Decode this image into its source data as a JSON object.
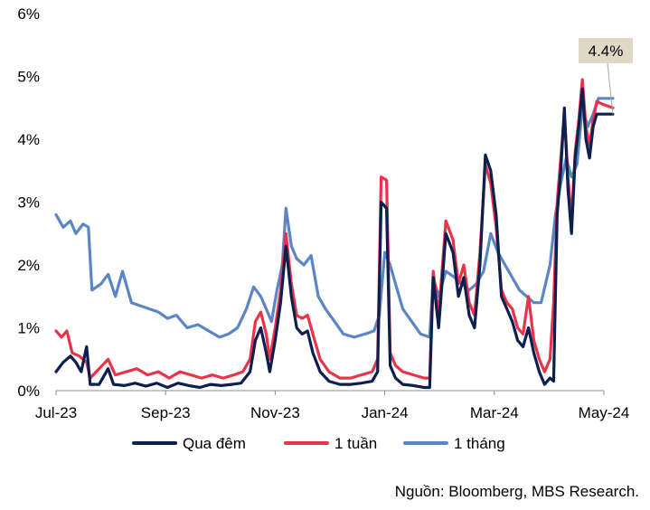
{
  "chart_data": {
    "type": "line",
    "x_ticks": [
      "Jul-23",
      "Sep-23",
      "Nov-23",
      "Jan-24",
      "Mar-24",
      "May-24"
    ],
    "x_range": [
      "2023-07-01",
      "2024-05-01"
    ],
    "y_ticks": [
      "0%",
      "1%",
      "2%",
      "3%",
      "4%",
      "5%",
      "6%"
    ],
    "ylim": [
      0,
      6
    ],
    "grid": false,
    "legend_position": "bottom",
    "callout": {
      "text": "4.4%",
      "background": "#ddd9c4",
      "series": "Qua đêm"
    },
    "series": [
      {
        "name": "Qua đêm",
        "color": "#0d1f4f",
        "points": [
          [
            "2023-07-01",
            0.3
          ],
          [
            "2023-07-05",
            0.45
          ],
          [
            "2023-07-09",
            0.55
          ],
          [
            "2023-07-12",
            0.45
          ],
          [
            "2023-07-15",
            0.3
          ],
          [
            "2023-07-18",
            0.7
          ],
          [
            "2023-07-20",
            0.1
          ],
          [
            "2023-07-25",
            0.1
          ],
          [
            "2023-07-30",
            0.35
          ],
          [
            "2023-08-02",
            0.1
          ],
          [
            "2023-08-08",
            0.08
          ],
          [
            "2023-08-14",
            0.12
          ],
          [
            "2023-08-20",
            0.07
          ],
          [
            "2023-08-26",
            0.12
          ],
          [
            "2023-09-01",
            0.05
          ],
          [
            "2023-09-07",
            0.12
          ],
          [
            "2023-09-13",
            0.08
          ],
          [
            "2023-09-19",
            0.05
          ],
          [
            "2023-09-25",
            0.1
          ],
          [
            "2023-10-01",
            0.08
          ],
          [
            "2023-10-07",
            0.1
          ],
          [
            "2023-10-12",
            0.12
          ],
          [
            "2023-10-17",
            0.3
          ],
          [
            "2023-10-20",
            0.8
          ],
          [
            "2023-10-23",
            1.0
          ],
          [
            "2023-10-26",
            0.6
          ],
          [
            "2023-10-28",
            0.3
          ],
          [
            "2023-10-31",
            0.8
          ],
          [
            "2023-11-03",
            1.4
          ],
          [
            "2023-11-06",
            2.3
          ],
          [
            "2023-11-09",
            1.5
          ],
          [
            "2023-11-12",
            1.0
          ],
          [
            "2023-11-15",
            0.9
          ],
          [
            "2023-11-18",
            0.95
          ],
          [
            "2023-11-21",
            0.6
          ],
          [
            "2023-11-25",
            0.3
          ],
          [
            "2023-11-30",
            0.15
          ],
          [
            "2023-12-06",
            0.1
          ],
          [
            "2023-12-12",
            0.1
          ],
          [
            "2023-12-18",
            0.12
          ],
          [
            "2023-12-24",
            0.15
          ],
          [
            "2023-12-27",
            0.3
          ],
          [
            "2023-12-29",
            3.0
          ],
          [
            "2024-01-01",
            2.9
          ],
          [
            "2024-01-03",
            0.4
          ],
          [
            "2024-01-06",
            0.2
          ],
          [
            "2024-01-10",
            0.1
          ],
          [
            "2024-01-16",
            0.08
          ],
          [
            "2024-01-22",
            0.05
          ],
          [
            "2024-01-25",
            0.05
          ],
          [
            "2024-01-27",
            1.8
          ],
          [
            "2024-01-30",
            1.0
          ],
          [
            "2024-02-03",
            2.5
          ],
          [
            "2024-02-07",
            2.2
          ],
          [
            "2024-02-10",
            1.5
          ],
          [
            "2024-02-13",
            1.8
          ],
          [
            "2024-02-16",
            1.2
          ],
          [
            "2024-02-19",
            1.0
          ],
          [
            "2024-02-22",
            2.0
          ],
          [
            "2024-02-25",
            3.75
          ],
          [
            "2024-02-28",
            3.5
          ],
          [
            "2024-03-02",
            2.8
          ],
          [
            "2024-03-05",
            1.5
          ],
          [
            "2024-03-08",
            1.3
          ],
          [
            "2024-03-11",
            1.1
          ],
          [
            "2024-03-14",
            0.8
          ],
          [
            "2024-03-17",
            0.7
          ],
          [
            "2024-03-20",
            1.0
          ],
          [
            "2024-03-23",
            0.6
          ],
          [
            "2024-03-26",
            0.3
          ],
          [
            "2024-03-29",
            0.1
          ],
          [
            "2024-04-01",
            0.2
          ],
          [
            "2024-04-03",
            0.15
          ],
          [
            "2024-04-05",
            2.8
          ],
          [
            "2024-04-07",
            3.5
          ],
          [
            "2024-04-09",
            4.5
          ],
          [
            "2024-04-11",
            3.2
          ],
          [
            "2024-04-13",
            2.5
          ],
          [
            "2024-04-15",
            3.7
          ],
          [
            "2024-04-17",
            4.2
          ],
          [
            "2024-04-19",
            4.8
          ],
          [
            "2024-04-21",
            4.0
          ],
          [
            "2024-04-23",
            3.7
          ],
          [
            "2024-04-25",
            4.2
          ],
          [
            "2024-04-27",
            4.4
          ],
          [
            "2024-05-01",
            4.4
          ],
          [
            "2024-05-06",
            4.4
          ]
        ]
      },
      {
        "name": "1 tuần",
        "color": "#e8334a",
        "points": [
          [
            "2023-07-01",
            0.95
          ],
          [
            "2023-07-04",
            0.85
          ],
          [
            "2023-07-07",
            0.95
          ],
          [
            "2023-07-10",
            0.6
          ],
          [
            "2023-07-14",
            0.55
          ],
          [
            "2023-07-18",
            0.45
          ],
          [
            "2023-07-20",
            0.2
          ],
          [
            "2023-07-25",
            0.35
          ],
          [
            "2023-07-30",
            0.5
          ],
          [
            "2023-08-03",
            0.25
          ],
          [
            "2023-08-09",
            0.3
          ],
          [
            "2023-08-15",
            0.35
          ],
          [
            "2023-08-21",
            0.25
          ],
          [
            "2023-08-27",
            0.3
          ],
          [
            "2023-09-02",
            0.2
          ],
          [
            "2023-09-08",
            0.3
          ],
          [
            "2023-09-14",
            0.25
          ],
          [
            "2023-09-20",
            0.2
          ],
          [
            "2023-09-26",
            0.25
          ],
          [
            "2023-10-02",
            0.2
          ],
          [
            "2023-10-08",
            0.25
          ],
          [
            "2023-10-13",
            0.3
          ],
          [
            "2023-10-17",
            0.5
          ],
          [
            "2023-10-20",
            1.1
          ],
          [
            "2023-10-23",
            1.25
          ],
          [
            "2023-10-26",
            0.9
          ],
          [
            "2023-10-28",
            0.5
          ],
          [
            "2023-10-31",
            1.0
          ],
          [
            "2023-11-03",
            1.6
          ],
          [
            "2023-11-06",
            2.5
          ],
          [
            "2023-11-09",
            1.7
          ],
          [
            "2023-11-12",
            1.2
          ],
          [
            "2023-11-15",
            1.15
          ],
          [
            "2023-11-18",
            1.2
          ],
          [
            "2023-11-21",
            0.9
          ],
          [
            "2023-11-25",
            0.5
          ],
          [
            "2023-11-30",
            0.3
          ],
          [
            "2023-12-06",
            0.2
          ],
          [
            "2023-12-12",
            0.2
          ],
          [
            "2023-12-18",
            0.25
          ],
          [
            "2023-12-24",
            0.3
          ],
          [
            "2023-12-27",
            0.5
          ],
          [
            "2023-12-29",
            3.4
          ],
          [
            "2024-01-01",
            3.35
          ],
          [
            "2024-01-03",
            0.6
          ],
          [
            "2024-01-06",
            0.4
          ],
          [
            "2024-01-10",
            0.3
          ],
          [
            "2024-01-16",
            0.25
          ],
          [
            "2024-01-22",
            0.2
          ],
          [
            "2024-01-25",
            0.2
          ],
          [
            "2024-01-27",
            1.9
          ],
          [
            "2024-01-30",
            1.2
          ],
          [
            "2024-02-03",
            2.7
          ],
          [
            "2024-02-07",
            2.4
          ],
          [
            "2024-02-10",
            1.7
          ],
          [
            "2024-02-13",
            2.0
          ],
          [
            "2024-02-16",
            1.4
          ],
          [
            "2024-02-19",
            1.2
          ],
          [
            "2024-02-22",
            2.2
          ],
          [
            "2024-02-25",
            3.6
          ],
          [
            "2024-02-28",
            3.3
          ],
          [
            "2024-03-02",
            2.6
          ],
          [
            "2024-03-05",
            1.6
          ],
          [
            "2024-03-08",
            1.4
          ],
          [
            "2024-03-11",
            1.3
          ],
          [
            "2024-03-14",
            1.0
          ],
          [
            "2024-03-17",
            0.9
          ],
          [
            "2024-03-20",
            1.5
          ],
          [
            "2024-03-23",
            0.8
          ],
          [
            "2024-03-26",
            0.5
          ],
          [
            "2024-03-29",
            0.3
          ],
          [
            "2024-04-01",
            0.5
          ],
          [
            "2024-04-03",
            1.4
          ],
          [
            "2024-04-05",
            3.0
          ],
          [
            "2024-04-07",
            3.7
          ],
          [
            "2024-04-09",
            4.4
          ],
          [
            "2024-04-11",
            3.4
          ],
          [
            "2024-04-13",
            2.7
          ],
          [
            "2024-04-15",
            3.8
          ],
          [
            "2024-04-17",
            4.3
          ],
          [
            "2024-04-19",
            4.95
          ],
          [
            "2024-04-21",
            4.2
          ],
          [
            "2024-04-23",
            3.9
          ],
          [
            "2024-04-25",
            4.3
          ],
          [
            "2024-04-27",
            4.6
          ],
          [
            "2024-05-01",
            4.55
          ],
          [
            "2024-05-06",
            4.5
          ]
        ]
      },
      {
        "name": "1 tháng",
        "color": "#5b86c5",
        "points": [
          [
            "2023-07-01",
            2.8
          ],
          [
            "2023-07-05",
            2.6
          ],
          [
            "2023-07-09",
            2.7
          ],
          [
            "2023-07-12",
            2.5
          ],
          [
            "2023-07-16",
            2.65
          ],
          [
            "2023-07-19",
            2.6
          ],
          [
            "2023-07-21",
            1.6
          ],
          [
            "2023-07-26",
            1.7
          ],
          [
            "2023-07-30",
            1.85
          ],
          [
            "2023-08-03",
            1.5
          ],
          [
            "2023-08-07",
            1.9
          ],
          [
            "2023-08-12",
            1.4
          ],
          [
            "2023-08-17",
            1.35
          ],
          [
            "2023-08-22",
            1.3
          ],
          [
            "2023-08-27",
            1.25
          ],
          [
            "2023-09-01",
            1.15
          ],
          [
            "2023-09-06",
            1.2
          ],
          [
            "2023-09-12",
            1.0
          ],
          [
            "2023-09-18",
            1.05
          ],
          [
            "2023-09-24",
            0.95
          ],
          [
            "2023-09-30",
            0.85
          ],
          [
            "2023-10-05",
            0.9
          ],
          [
            "2023-10-10",
            1.0
          ],
          [
            "2023-10-15",
            1.3
          ],
          [
            "2023-10-19",
            1.65
          ],
          [
            "2023-10-23",
            1.5
          ],
          [
            "2023-10-26",
            1.3
          ],
          [
            "2023-10-29",
            1.1
          ],
          [
            "2023-11-01",
            1.6
          ],
          [
            "2023-11-04",
            2.0
          ],
          [
            "2023-11-06",
            2.9
          ],
          [
            "2023-11-09",
            2.3
          ],
          [
            "2023-11-12",
            2.1
          ],
          [
            "2023-11-16",
            2.0
          ],
          [
            "2023-11-20",
            2.15
          ],
          [
            "2023-11-24",
            1.5
          ],
          [
            "2023-11-28",
            1.3
          ],
          [
            "2023-12-03",
            1.1
          ],
          [
            "2023-12-08",
            0.9
          ],
          [
            "2023-12-14",
            0.85
          ],
          [
            "2023-12-20",
            0.9
          ],
          [
            "2023-12-25",
            0.95
          ],
          [
            "2023-12-28",
            1.2
          ],
          [
            "2023-12-31",
            2.2
          ],
          [
            "2024-01-03",
            2.0
          ],
          [
            "2024-01-06",
            1.7
          ],
          [
            "2024-01-10",
            1.3
          ],
          [
            "2024-01-15",
            1.1
          ],
          [
            "2024-01-20",
            0.9
          ],
          [
            "2024-01-25",
            0.85
          ],
          [
            "2024-01-27",
            1.8
          ],
          [
            "2024-01-30",
            1.5
          ],
          [
            "2024-02-03",
            1.9
          ],
          [
            "2024-02-08",
            1.8
          ],
          [
            "2024-02-12",
            1.7
          ],
          [
            "2024-02-16",
            1.6
          ],
          [
            "2024-02-20",
            1.7
          ],
          [
            "2024-02-24",
            1.9
          ],
          [
            "2024-02-28",
            2.5
          ],
          [
            "2024-03-03",
            2.2
          ],
          [
            "2024-03-07",
            2.0
          ],
          [
            "2024-03-11",
            1.8
          ],
          [
            "2024-03-15",
            1.6
          ],
          [
            "2024-03-19",
            1.5
          ],
          [
            "2024-03-23",
            1.4
          ],
          [
            "2024-03-27",
            1.4
          ],
          [
            "2024-04-01",
            2.0
          ],
          [
            "2024-04-04",
            2.8
          ],
          [
            "2024-04-07",
            3.3
          ],
          [
            "2024-04-10",
            3.7
          ],
          [
            "2024-04-13",
            3.4
          ],
          [
            "2024-04-16",
            3.6
          ],
          [
            "2024-04-19",
            4.5
          ],
          [
            "2024-04-22",
            4.2
          ],
          [
            "2024-04-25",
            4.4
          ],
          [
            "2024-04-28",
            4.65
          ],
          [
            "2024-05-02",
            4.65
          ],
          [
            "2024-05-06",
            4.65
          ]
        ]
      }
    ]
  },
  "legend": {
    "items": [
      {
        "label": "Qua đêm",
        "color": "#0d1f4f"
      },
      {
        "label": "1 tuần",
        "color": "#e8334a"
      },
      {
        "label": "1 tháng",
        "color": "#5b86c5"
      }
    ]
  },
  "source": "Nguồn: Bloomberg, MBS Research."
}
